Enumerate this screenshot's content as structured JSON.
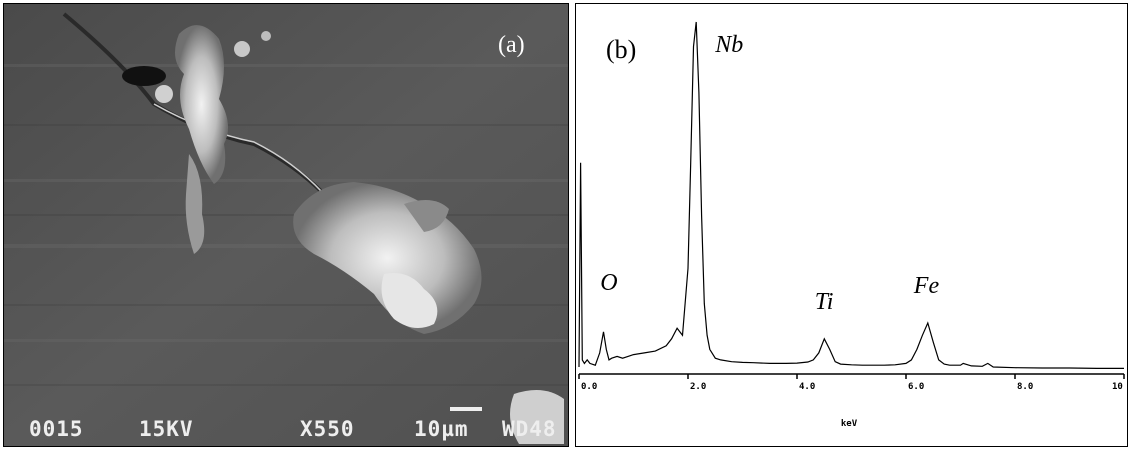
{
  "sem_panel": {
    "caption": "(a)",
    "micron_bar_readout": {
      "micrograph_no": "0015",
      "voltage": "15KV",
      "magnification": "X550",
      "scale": "10µm",
      "label": "WD48"
    }
  },
  "eds_panel": {
    "caption": "(b)"
  },
  "chart_data": {
    "type": "line",
    "title": "",
    "xlabel": "keV",
    "ylabel": "",
    "xlim": [
      0,
      10
    ],
    "ylim": [
      0,
      100
    ],
    "x_ticks": [
      "0.0",
      "2.0",
      "4.0",
      "6.0",
      "8.0",
      "10"
    ],
    "x_tick_values": [
      0.0,
      2.0,
      4.0,
      6.0,
      8.0,
      10.0
    ],
    "peak_labels": [
      {
        "label": "O",
        "x": 0.5
      },
      {
        "label": "Nb",
        "x": 2.17
      },
      {
        "label": "Ti",
        "x": 4.51
      },
      {
        "label": "Fe",
        "x": 6.4
      }
    ],
    "series": [
      {
        "x": [
          0.0,
          0.03,
          0.06,
          0.1,
          0.15,
          0.2,
          0.3,
          0.38,
          0.45,
          0.5,
          0.55,
          0.6,
          0.7,
          0.8,
          0.9,
          1.0,
          1.2,
          1.4,
          1.6,
          1.7,
          1.8,
          1.9,
          2.0,
          2.05,
          2.1,
          2.15,
          2.2,
          2.25,
          2.3,
          2.35,
          2.4,
          2.5,
          2.6,
          2.8,
          3.0,
          3.2,
          3.5,
          3.8,
          4.0,
          4.2,
          4.3,
          4.4,
          4.5,
          4.6,
          4.7,
          4.8,
          5.0,
          5.2,
          5.4,
          5.6,
          5.8,
          6.0,
          6.1,
          6.2,
          6.3,
          6.4,
          6.5,
          6.6,
          6.7,
          6.8,
          7.0,
          7.05,
          7.2,
          7.4,
          7.5,
          7.6,
          8.0,
          8.5,
          9.0,
          9.5,
          10.0
        ],
        "y": [
          2,
          60,
          4,
          3,
          4,
          3,
          2.5,
          6,
          12,
          7,
          4,
          4.5,
          5,
          4.5,
          5,
          5.5,
          6,
          6.5,
          8,
          10,
          13,
          11,
          30,
          60,
          93,
          100,
          80,
          45,
          20,
          11,
          7,
          4.5,
          4,
          3.5,
          3.3,
          3.2,
          3.0,
          3.0,
          3.1,
          3.4,
          4,
          6,
          10,
          7,
          3.5,
          2.8,
          2.6,
          2.5,
          2.5,
          2.5,
          2.6,
          3,
          4,
          7,
          11,
          14.5,
          9,
          4,
          2.8,
          2.5,
          2.5,
          3,
          2.3,
          2.2,
          3,
          2,
          1.8,
          1.7,
          1.7,
          1.6,
          1.6
        ]
      }
    ]
  }
}
